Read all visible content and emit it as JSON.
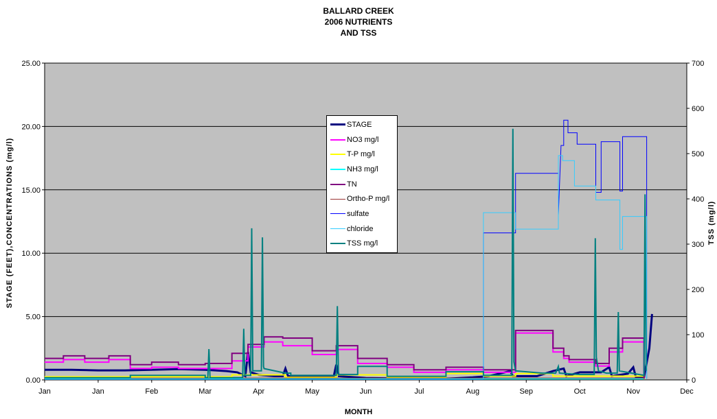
{
  "chart_data": {
    "type": "line",
    "title_lines": [
      "BALLARD CREEK",
      "2006 NUTRIENTS",
      "AND TSS"
    ],
    "xlabel": "MONTH",
    "ylabel_left": "STAGE (FEET),CONCENTRATIONS (mg/l)",
    "ylabel_right": "TSS (mg/l)",
    "x_tick_labels": [
      "Jan",
      "Jan",
      "Feb",
      "Mar",
      "Apr",
      "May",
      "Jun",
      "Jul",
      "Aug",
      "Sep",
      "Oct",
      "Nov",
      "Dec"
    ],
    "x_range": [
      0,
      12
    ],
    "y_left_ticks": [
      "0.00",
      "5.00",
      "10.00",
      "15.00",
      "20.00",
      "25.00"
    ],
    "y_left_range": [
      0,
      25
    ],
    "y_right_ticks": [
      "0",
      "100",
      "200",
      "300",
      "400",
      "500",
      "600",
      "700"
    ],
    "y_right_range": [
      0,
      700
    ],
    "grid": "horizontal",
    "plot_background": "#c0c0c0",
    "legend_position": "center",
    "series": [
      {
        "name": "STAGE",
        "color": "#000080",
        "width": 3,
        "axis": "left",
        "points": [
          [
            0,
            0.8
          ],
          [
            0.5,
            0.8
          ],
          [
            1,
            0.75
          ],
          [
            1.5,
            0.75
          ],
          [
            2,
            0.8
          ],
          [
            2.5,
            0.85
          ],
          [
            3,
            0.8
          ],
          [
            3.4,
            0.7
          ],
          [
            3.6,
            0.6
          ],
          [
            3.75,
            0.3
          ],
          [
            3.8,
            2.2
          ],
          [
            3.85,
            0.6
          ],
          [
            4.0,
            0.4
          ],
          [
            4.3,
            0.3
          ],
          [
            4.45,
            0.3
          ],
          [
            4.5,
            0.9
          ],
          [
            4.55,
            0.3
          ],
          [
            5,
            0.25
          ],
          [
            5.4,
            0.25
          ],
          [
            5.45,
            1.2
          ],
          [
            5.5,
            0.3
          ],
          [
            6,
            0.15
          ],
          [
            7,
            0.1
          ],
          [
            7.5,
            0.1
          ],
          [
            8,
            0.2
          ],
          [
            8.3,
            0.3
          ],
          [
            8.7,
            0.7
          ],
          [
            8.75,
            0.3
          ],
          [
            9.2,
            0.3
          ],
          [
            9.5,
            0.7
          ],
          [
            9.7,
            0.9
          ],
          [
            9.75,
            0.3
          ],
          [
            10,
            0.6
          ],
          [
            10.4,
            0.6
          ],
          [
            10.55,
            1.0
          ],
          [
            10.6,
            0.3
          ],
          [
            10.9,
            0.5
          ],
          [
            11.0,
            1.0
          ],
          [
            11.05,
            0.2
          ],
          [
            11.2,
            0.2
          ],
          [
            11.3,
            2.5
          ],
          [
            11.35,
            5.2
          ]
        ]
      },
      {
        "name": "NO3 mg/l",
        "color": "#ff00ff",
        "width": 2,
        "axis": "left",
        "points": [
          [
            0,
            1.4
          ],
          [
            0.35,
            1.4
          ],
          [
            0.35,
            1.6
          ],
          [
            0.75,
            1.6
          ],
          [
            0.75,
            1.4
          ],
          [
            1.2,
            1.4
          ],
          [
            1.2,
            1.6
          ],
          [
            1.6,
            1.6
          ],
          [
            1.6,
            0.9
          ],
          [
            2.0,
            0.9
          ],
          [
            2.0,
            1.0
          ],
          [
            2.5,
            1.0
          ],
          [
            2.5,
            0.9
          ],
          [
            3.5,
            0.9
          ],
          [
            3.5,
            1.5
          ],
          [
            3.8,
            1.5
          ],
          [
            3.8,
            2.6
          ],
          [
            4.1,
            2.6
          ],
          [
            4.1,
            3.0
          ],
          [
            4.45,
            3.0
          ],
          [
            4.45,
            2.7
          ],
          [
            5.0,
            2.7
          ],
          [
            5.0,
            2.0
          ],
          [
            5.45,
            2.0
          ],
          [
            5.45,
            2.4
          ],
          [
            5.85,
            2.4
          ],
          [
            5.85,
            1.3
          ],
          [
            6.4,
            1.3
          ],
          [
            6.4,
            1.0
          ],
          [
            6.9,
            1.0
          ],
          [
            6.9,
            0.6
          ],
          [
            7.5,
            0.6
          ],
          [
            7.5,
            0.8
          ],
          [
            8.2,
            0.8
          ],
          [
            8.2,
            0.6
          ],
          [
            8.8,
            0.6
          ],
          [
            8.8,
            3.7
          ],
          [
            9.5,
            3.7
          ],
          [
            9.5,
            2.2
          ],
          [
            9.7,
            2.2
          ],
          [
            9.7,
            1.7
          ],
          [
            9.8,
            1.7
          ],
          [
            9.8,
            1.4
          ],
          [
            10.3,
            1.4
          ],
          [
            10.3,
            1.1
          ],
          [
            10.55,
            1.1
          ],
          [
            10.55,
            2.2
          ],
          [
            10.8,
            2.2
          ],
          [
            10.8,
            3.0
          ],
          [
            11.2,
            3.0
          ],
          [
            11.2,
            0.1
          ]
        ]
      },
      {
        "name": "T-P mg/l",
        "color": "#ffff00",
        "width": 2,
        "axis": "left",
        "points": [
          [
            0,
            0.25
          ],
          [
            3.5,
            0.25
          ],
          [
            3.5,
            0.4
          ],
          [
            4.5,
            0.4
          ],
          [
            4.5,
            0.2
          ],
          [
            5.45,
            0.2
          ],
          [
            5.45,
            0.4
          ],
          [
            6.4,
            0.4
          ],
          [
            6.4,
            0.2
          ],
          [
            7.5,
            0.2
          ],
          [
            7.5,
            0.5
          ],
          [
            8.2,
            0.5
          ],
          [
            8.2,
            0.3
          ],
          [
            8.8,
            0.3
          ],
          [
            8.8,
            0.5
          ],
          [
            9.5,
            0.5
          ],
          [
            9.5,
            0.3
          ],
          [
            11.2,
            0.3
          ],
          [
            11.2,
            0.05
          ]
        ]
      },
      {
        "name": "NH3 mg/l",
        "color": "#00ffff",
        "width": 2,
        "axis": "left",
        "points": [
          [
            0,
            0.1
          ],
          [
            11.2,
            0.1
          ]
        ]
      },
      {
        "name": "TN",
        "color": "#800080",
        "width": 2,
        "axis": "left",
        "points": [
          [
            0,
            1.7
          ],
          [
            0.35,
            1.7
          ],
          [
            0.35,
            1.9
          ],
          [
            0.75,
            1.9
          ],
          [
            0.75,
            1.7
          ],
          [
            1.2,
            1.7
          ],
          [
            1.2,
            1.9
          ],
          [
            1.6,
            1.9
          ],
          [
            1.6,
            1.2
          ],
          [
            2.0,
            1.2
          ],
          [
            2.0,
            1.4
          ],
          [
            2.5,
            1.4
          ],
          [
            2.5,
            1.2
          ],
          [
            3.0,
            1.2
          ],
          [
            3.0,
            1.3
          ],
          [
            3.5,
            1.3
          ],
          [
            3.5,
            2.1
          ],
          [
            3.8,
            2.1
          ],
          [
            3.8,
            2.8
          ],
          [
            4.1,
            2.8
          ],
          [
            4.1,
            3.4
          ],
          [
            4.45,
            3.4
          ],
          [
            4.45,
            3.3
          ],
          [
            5.0,
            3.3
          ],
          [
            5.0,
            2.3
          ],
          [
            5.45,
            2.3
          ],
          [
            5.45,
            2.7
          ],
          [
            5.85,
            2.7
          ],
          [
            5.85,
            1.7
          ],
          [
            6.4,
            1.7
          ],
          [
            6.4,
            1.2
          ],
          [
            6.9,
            1.2
          ],
          [
            6.9,
            0.8
          ],
          [
            7.5,
            0.8
          ],
          [
            7.5,
            1.0
          ],
          [
            8.2,
            1.0
          ],
          [
            8.2,
            0.8
          ],
          [
            8.8,
            0.8
          ],
          [
            8.8,
            3.9
          ],
          [
            9.5,
            3.9
          ],
          [
            9.5,
            2.5
          ],
          [
            9.7,
            2.5
          ],
          [
            9.7,
            1.9
          ],
          [
            9.8,
            1.9
          ],
          [
            9.8,
            1.6
          ],
          [
            10.3,
            1.6
          ],
          [
            10.3,
            1.3
          ],
          [
            10.55,
            1.3
          ],
          [
            10.55,
            2.5
          ],
          [
            10.8,
            2.5
          ],
          [
            10.8,
            3.3
          ],
          [
            11.2,
            3.3
          ],
          [
            11.2,
            0.1
          ]
        ]
      },
      {
        "name": "Ortho-P mg/l",
        "color": "#993333",
        "width": 1,
        "axis": "left",
        "points": [
          [
            0,
            0.15
          ],
          [
            11.2,
            0.15
          ]
        ]
      },
      {
        "name": "sulfate",
        "color": "#0000ff",
        "width": 1,
        "axis": "left",
        "points": [
          [
            0,
            0.05
          ],
          [
            8.2,
            0.05
          ],
          [
            8.2,
            11.6
          ],
          [
            8.8,
            11.6
          ],
          [
            8.8,
            16.3
          ],
          [
            9.6,
            16.3
          ],
          [
            9.6,
            13.0
          ],
          [
            9.65,
            18.5
          ],
          [
            9.7,
            18.5
          ],
          [
            9.7,
            20.5
          ],
          [
            9.78,
            20.5
          ],
          [
            9.78,
            19.5
          ],
          [
            9.95,
            19.5
          ],
          [
            9.95,
            18.6
          ],
          [
            10.3,
            18.6
          ],
          [
            10.3,
            14.8
          ],
          [
            10.4,
            14.8
          ],
          [
            10.4,
            18.8
          ],
          [
            10.75,
            18.8
          ],
          [
            10.75,
            14.9
          ],
          [
            10.8,
            14.9
          ],
          [
            10.8,
            19.2
          ],
          [
            11.25,
            19.2
          ],
          [
            11.25,
            0.1
          ]
        ]
      },
      {
        "name": "chloride",
        "color": "#33ccff",
        "width": 1,
        "axis": "left",
        "points": [
          [
            0,
            0.05
          ],
          [
            8.2,
            0.05
          ],
          [
            8.2,
            13.2
          ],
          [
            8.8,
            13.2
          ],
          [
            8.8,
            11.9
          ],
          [
            9.6,
            11.9
          ],
          [
            9.6,
            17.7
          ],
          [
            9.68,
            17.7
          ],
          [
            9.68,
            17.3
          ],
          [
            9.9,
            17.3
          ],
          [
            9.9,
            15.3
          ],
          [
            10.3,
            15.3
          ],
          [
            10.3,
            14.2
          ],
          [
            10.75,
            14.2
          ],
          [
            10.75,
            10.3
          ],
          [
            10.8,
            10.3
          ],
          [
            10.8,
            12.9
          ],
          [
            11.25,
            12.9
          ],
          [
            11.25,
            0.1
          ]
        ]
      },
      {
        "name": "TSS mg/l",
        "color": "#008080",
        "width": 2,
        "axis": "right",
        "points": [
          [
            0,
            5
          ],
          [
            1.6,
            5
          ],
          [
            1.6,
            10
          ],
          [
            3.0,
            10
          ],
          [
            3.0,
            5
          ],
          [
            3.05,
            5
          ],
          [
            3.07,
            68
          ],
          [
            3.09,
            5
          ],
          [
            3.7,
            5
          ],
          [
            3.72,
            113
          ],
          [
            3.74,
            10
          ],
          [
            3.85,
            10
          ],
          [
            3.87,
            335
          ],
          [
            3.89,
            20
          ],
          [
            4.05,
            20
          ],
          [
            4.07,
            315
          ],
          [
            4.09,
            30
          ],
          [
            4.1,
            25
          ],
          [
            4.5,
            15
          ],
          [
            4.6,
            15
          ],
          [
            4.6,
            10
          ],
          [
            5.45,
            10
          ],
          [
            5.47,
            163
          ],
          [
            5.49,
            12
          ],
          [
            5.85,
            12
          ],
          [
            5.85,
            30
          ],
          [
            6.4,
            30
          ],
          [
            6.4,
            8
          ],
          [
            7.5,
            8
          ],
          [
            7.5,
            18
          ],
          [
            8.2,
            18
          ],
          [
            8.2,
            10
          ],
          [
            8.73,
            10
          ],
          [
            8.75,
            555
          ],
          [
            8.77,
            40
          ],
          [
            8.8,
            20
          ],
          [
            9.3,
            15
          ],
          [
            9.55,
            15
          ],
          [
            9.6,
            30
          ],
          [
            9.62,
            15
          ],
          [
            10.0,
            12
          ],
          [
            10.27,
            12
          ],
          [
            10.29,
            313
          ],
          [
            10.31,
            50
          ],
          [
            10.35,
            20
          ],
          [
            10.5,
            15
          ],
          [
            10.7,
            15
          ],
          [
            10.72,
            150
          ],
          [
            10.74,
            20
          ],
          [
            11.2,
            10
          ],
          [
            11.22,
            410
          ],
          [
            11.24,
            20
          ]
        ]
      }
    ]
  }
}
